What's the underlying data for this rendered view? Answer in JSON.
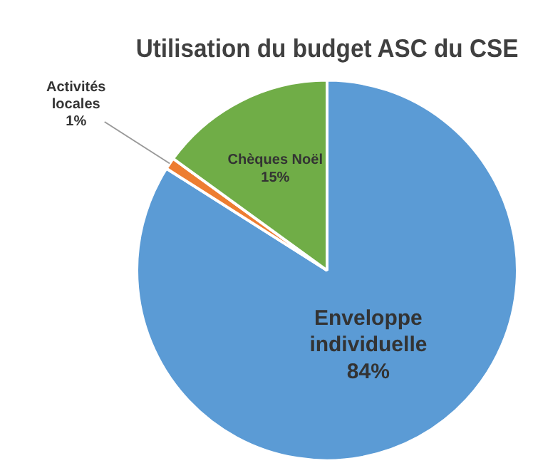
{
  "chart_data": {
    "type": "pie",
    "title": "Utilisation du budget ASC du CSE",
    "categories": [
      "Enveloppe individuelle",
      "Activités locales",
      "Chèques Noël"
    ],
    "values": [
      84,
      1,
      15
    ],
    "colors": [
      "#5b9bd5",
      "#ed7d31",
      "#70ad47"
    ],
    "value_labels": [
      "84%",
      "1%",
      "15%"
    ],
    "legend": false
  }
}
